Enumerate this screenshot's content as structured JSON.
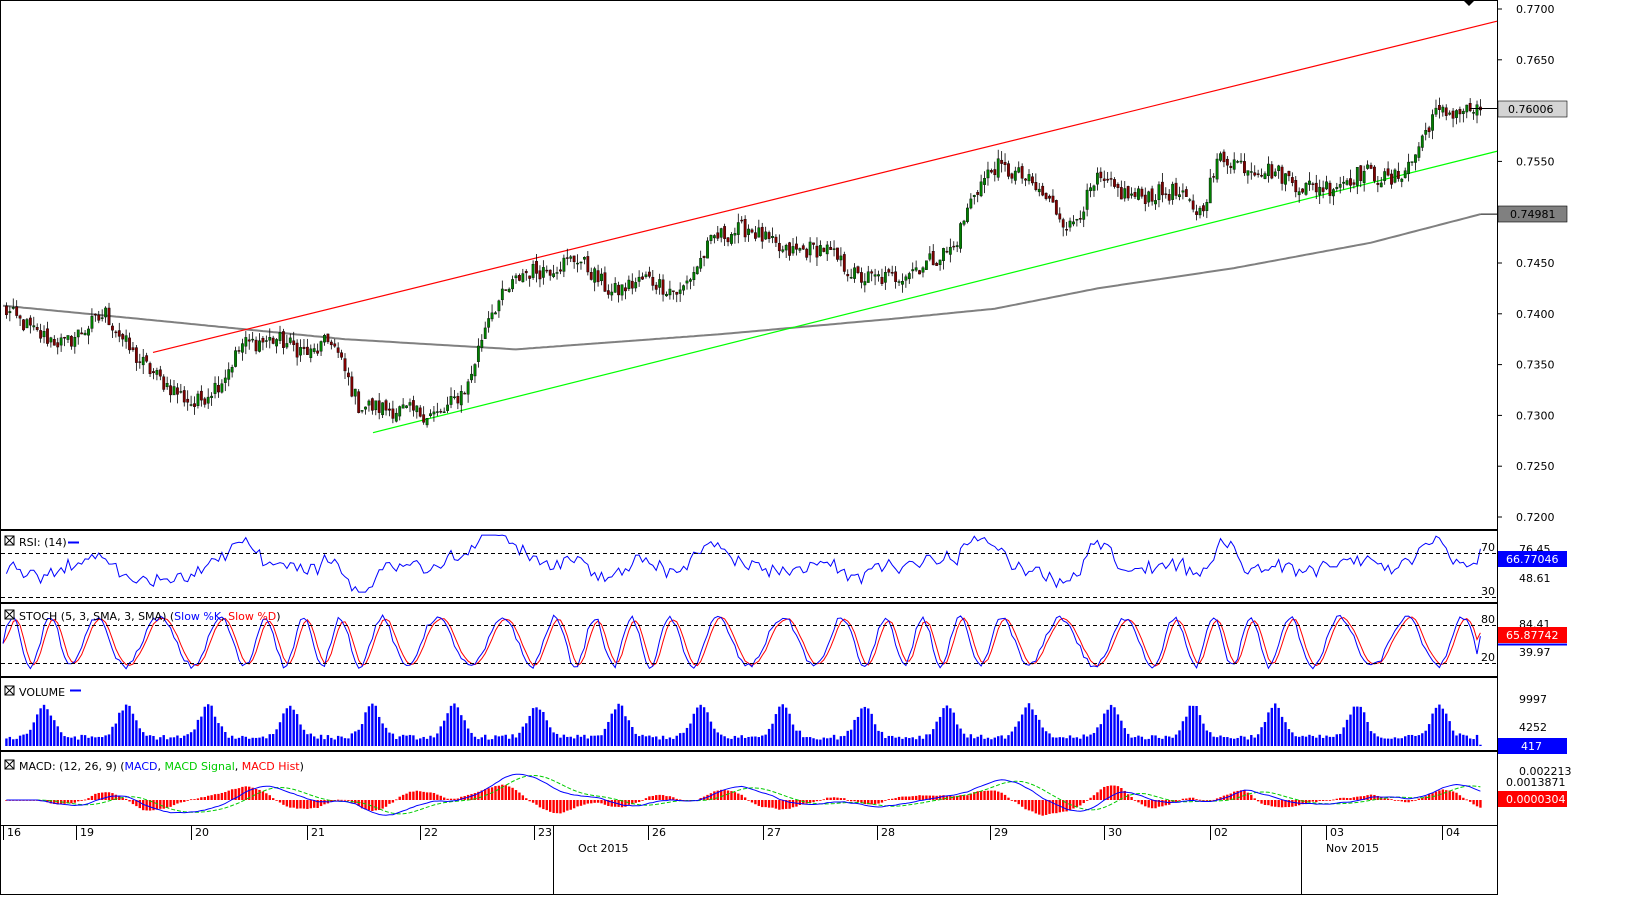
{
  "price_panel": {
    "y_ticks": [
      "0.7700",
      "0.7650",
      "0.7600",
      "0.7550",
      "0.7500",
      "0.7450",
      "0.7400",
      "0.7350",
      "0.7300",
      "0.7250",
      "0.7200"
    ],
    "last_price_badge": "0.76006",
    "ma_badge": "0.74981"
  },
  "rsi_panel": {
    "title": "RSI: (14)",
    "levels": [
      "70",
      "30"
    ],
    "axis_labels": [
      "76.45",
      "48.61"
    ],
    "value_badge": "66.77046"
  },
  "stoch_panel": {
    "title_prefix": "STOCH (5, 3, SMA, 3, SMA) (",
    "k_label": "Slow %K",
    "sep": ", ",
    "d_label": "Slow %D",
    "title_suffix": ")",
    "levels": [
      "80",
      "20"
    ],
    "axis_labels": [
      "84.41",
      "39.97"
    ],
    "value_badge": "65.87742"
  },
  "volume_panel": {
    "title": "VOLUME",
    "axis_labels": [
      "9997",
      "4252"
    ],
    "value_badge": "417"
  },
  "macd_panel": {
    "title_prefix": "MACD: (12, 26, 9) (",
    "macd_label": "MACD",
    "signal_label": "MACD Signal",
    "hist_label": "MACD Hist",
    "sep": ", ",
    "title_suffix": ")",
    "axis_labels": [
      "0.002213"
    ],
    "macd_badge": "0.0013871",
    "hist_badge": "0.0000304"
  },
  "x_axis": {
    "day_labels": [
      "16",
      "19",
      "20",
      "21",
      "22",
      "23",
      "26",
      "27",
      "28",
      "29",
      "30",
      "02",
      "03",
      "04"
    ],
    "month_labels": [
      "Oct 2015",
      "Nov 2015"
    ]
  },
  "colors": {
    "candle_up": "#008000",
    "candle_down": "#800000",
    "channel_upper": "#ff0000",
    "channel_lower": "#00ff00",
    "moving_average": "#808080",
    "rsi_line": "#0000ff",
    "stoch_k": "#0000ff",
    "stoch_d": "#ff0000",
    "volume": "#0000ff",
    "macd_line": "#0000ff",
    "macd_signal": "#00cc00",
    "macd_hist": "#ff0000",
    "badge_red": "#ff0000",
    "badge_blue": "#0000ff"
  },
  "chart_data": [
    {
      "type": "candlestick",
      "ylim": [
        0.719,
        0.7705
      ],
      "price_anchors": [
        [
          0,
          0.7405
        ],
        [
          10,
          0.738
        ],
        [
          18,
          0.737
        ],
        [
          24,
          0.7385
        ],
        [
          30,
          0.74
        ],
        [
          38,
          0.736
        ],
        [
          46,
          0.7335
        ],
        [
          56,
          0.731
        ],
        [
          64,
          0.7335
        ],
        [
          70,
          0.737
        ],
        [
          80,
          0.7375
        ],
        [
          90,
          0.736
        ],
        [
          96,
          0.7375
        ],
        [
          104,
          0.731
        ],
        [
          116,
          0.7305
        ],
        [
          128,
          0.73
        ],
        [
          136,
          0.733
        ],
        [
          142,
          0.74
        ],
        [
          152,
          0.744
        ],
        [
          160,
          0.7445
        ],
        [
          168,
          0.7455
        ],
        [
          178,
          0.742
        ],
        [
          188,
          0.7435
        ],
        [
          198,
          0.742
        ],
        [
          208,
          0.7475
        ],
        [
          218,
          0.7485
        ],
        [
          228,
          0.746
        ],
        [
          240,
          0.7465
        ],
        [
          250,
          0.7435
        ],
        [
          260,
          0.7435
        ],
        [
          270,
          0.745
        ],
        [
          278,
          0.7465
        ],
        [
          284,
          0.752
        ],
        [
          290,
          0.7545
        ],
        [
          298,
          0.7535
        ],
        [
          306,
          0.751
        ],
        [
          312,
          0.7485
        ],
        [
          320,
          0.753
        ],
        [
          330,
          0.7515
        ],
        [
          342,
          0.752
        ],
        [
          350,
          0.75
        ],
        [
          356,
          0.7555
        ],
        [
          364,
          0.7545
        ],
        [
          372,
          0.754
        ],
        [
          380,
          0.7525
        ],
        [
          388,
          0.7525
        ],
        [
          398,
          0.754
        ],
        [
          406,
          0.753
        ],
        [
          412,
          0.755
        ],
        [
          418,
          0.7595
        ],
        [
          426,
          0.76
        ],
        [
          432,
          0.76
        ]
      ],
      "channel_upper": {
        "start": [
          0.7362,
          0.7362
        ],
        "end": [
          0.7688,
          0.7688
        ]
      },
      "channel_lower": {
        "start": [
          0.7283,
          0.7283
        ],
        "end": [
          0.756,
          0.756
        ]
      },
      "moving_average_anchors": [
        [
          0,
          0.7408
        ],
        [
          40,
          0.7395
        ],
        [
          100,
          0.7375
        ],
        [
          150,
          0.7365
        ],
        [
          210,
          0.738
        ],
        [
          260,
          0.7395
        ],
        [
          290,
          0.7405
        ],
        [
          320,
          0.7425
        ],
        [
          360,
          0.7445
        ],
        [
          400,
          0.747
        ],
        [
          432,
          0.7498
        ]
      ],
      "last_price": 0.76006,
      "moving_average_last": 0.74981
    },
    {
      "type": "line",
      "name": "RSI",
      "ylim": [
        20,
        80
      ],
      "levels": [
        70,
        30
      ],
      "last_value": 66.77046
    },
    {
      "type": "line",
      "name": "STOCH",
      "ylim": [
        0,
        100
      ],
      "levels": [
        80,
        20
      ],
      "last_value": 65.87742
    },
    {
      "type": "bar",
      "name": "VOLUME",
      "last_value": 417
    },
    {
      "type": "line",
      "name": "MACD",
      "macd_last": 0.0013871,
      "hist_last": 3.04e-05
    }
  ]
}
